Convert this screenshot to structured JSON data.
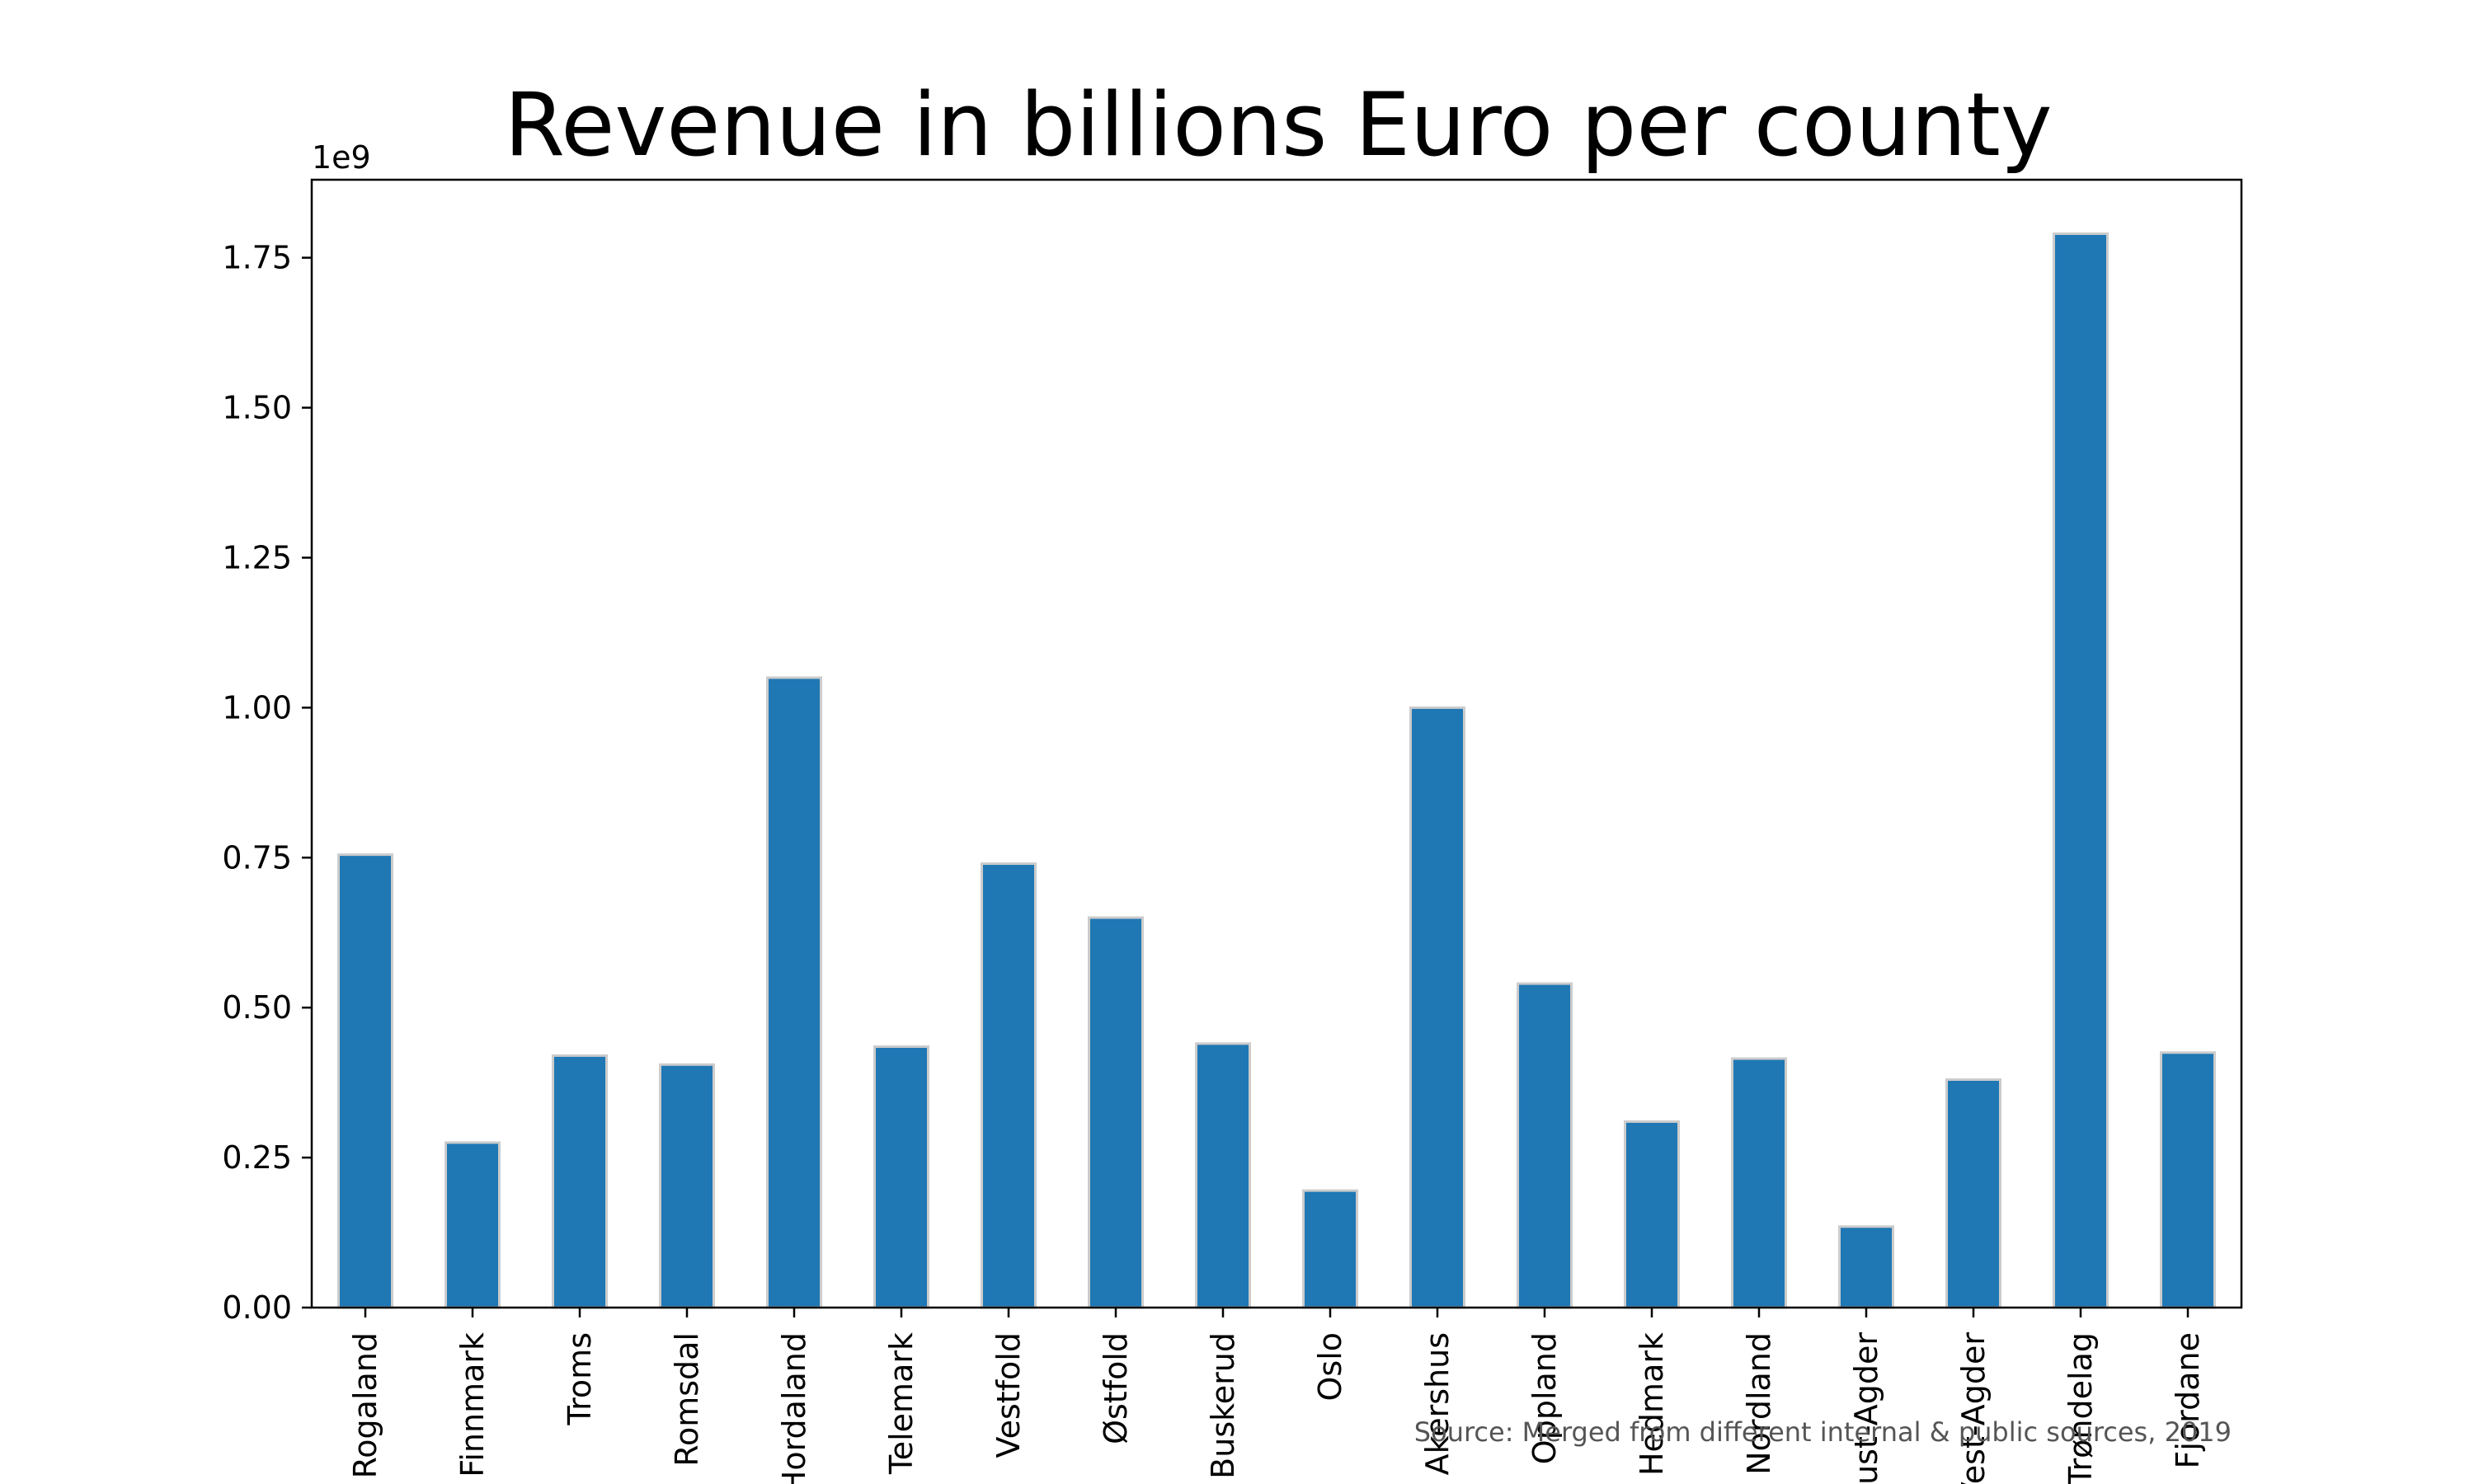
{
  "chart_data": {
    "type": "bar",
    "title": "Revenue in billions Euro per county",
    "xlabel": "",
    "ylabel": "",
    "y_offset_label": "1e9",
    "categories": [
      "Rogaland",
      "Finnmark",
      "Troms",
      "Romsdal",
      "Hordaland",
      "Telemark",
      "Vestfold",
      "Østfold",
      "Buskerud",
      "Oslo",
      "Akershus",
      "Oppland",
      "Hedmark",
      "Nordland",
      "Aust-Agder",
      "Vest-Agder",
      "Trøndelag",
      "Fjordane"
    ],
    "values": [
      0.755,
      0.275,
      0.42,
      0.405,
      1.05,
      0.435,
      0.74,
      0.65,
      0.44,
      0.195,
      1.0,
      0.54,
      0.31,
      0.415,
      0.135,
      0.38,
      1.79,
      0.425
    ],
    "ylim": [
      0,
      1.88
    ],
    "yticks": [
      0.0,
      0.25,
      0.5,
      0.75,
      1.0,
      1.25,
      1.5,
      1.75
    ],
    "ytick_labels": [
      "0.00",
      "0.25",
      "0.50",
      "0.75",
      "1.00",
      "1.25",
      "1.50",
      "1.75"
    ],
    "grid": false,
    "bar_color": "#1f77b4",
    "bar_edge_color": "#cccccc",
    "source": "Source: Merged from different internal & public sources, 2019"
  }
}
